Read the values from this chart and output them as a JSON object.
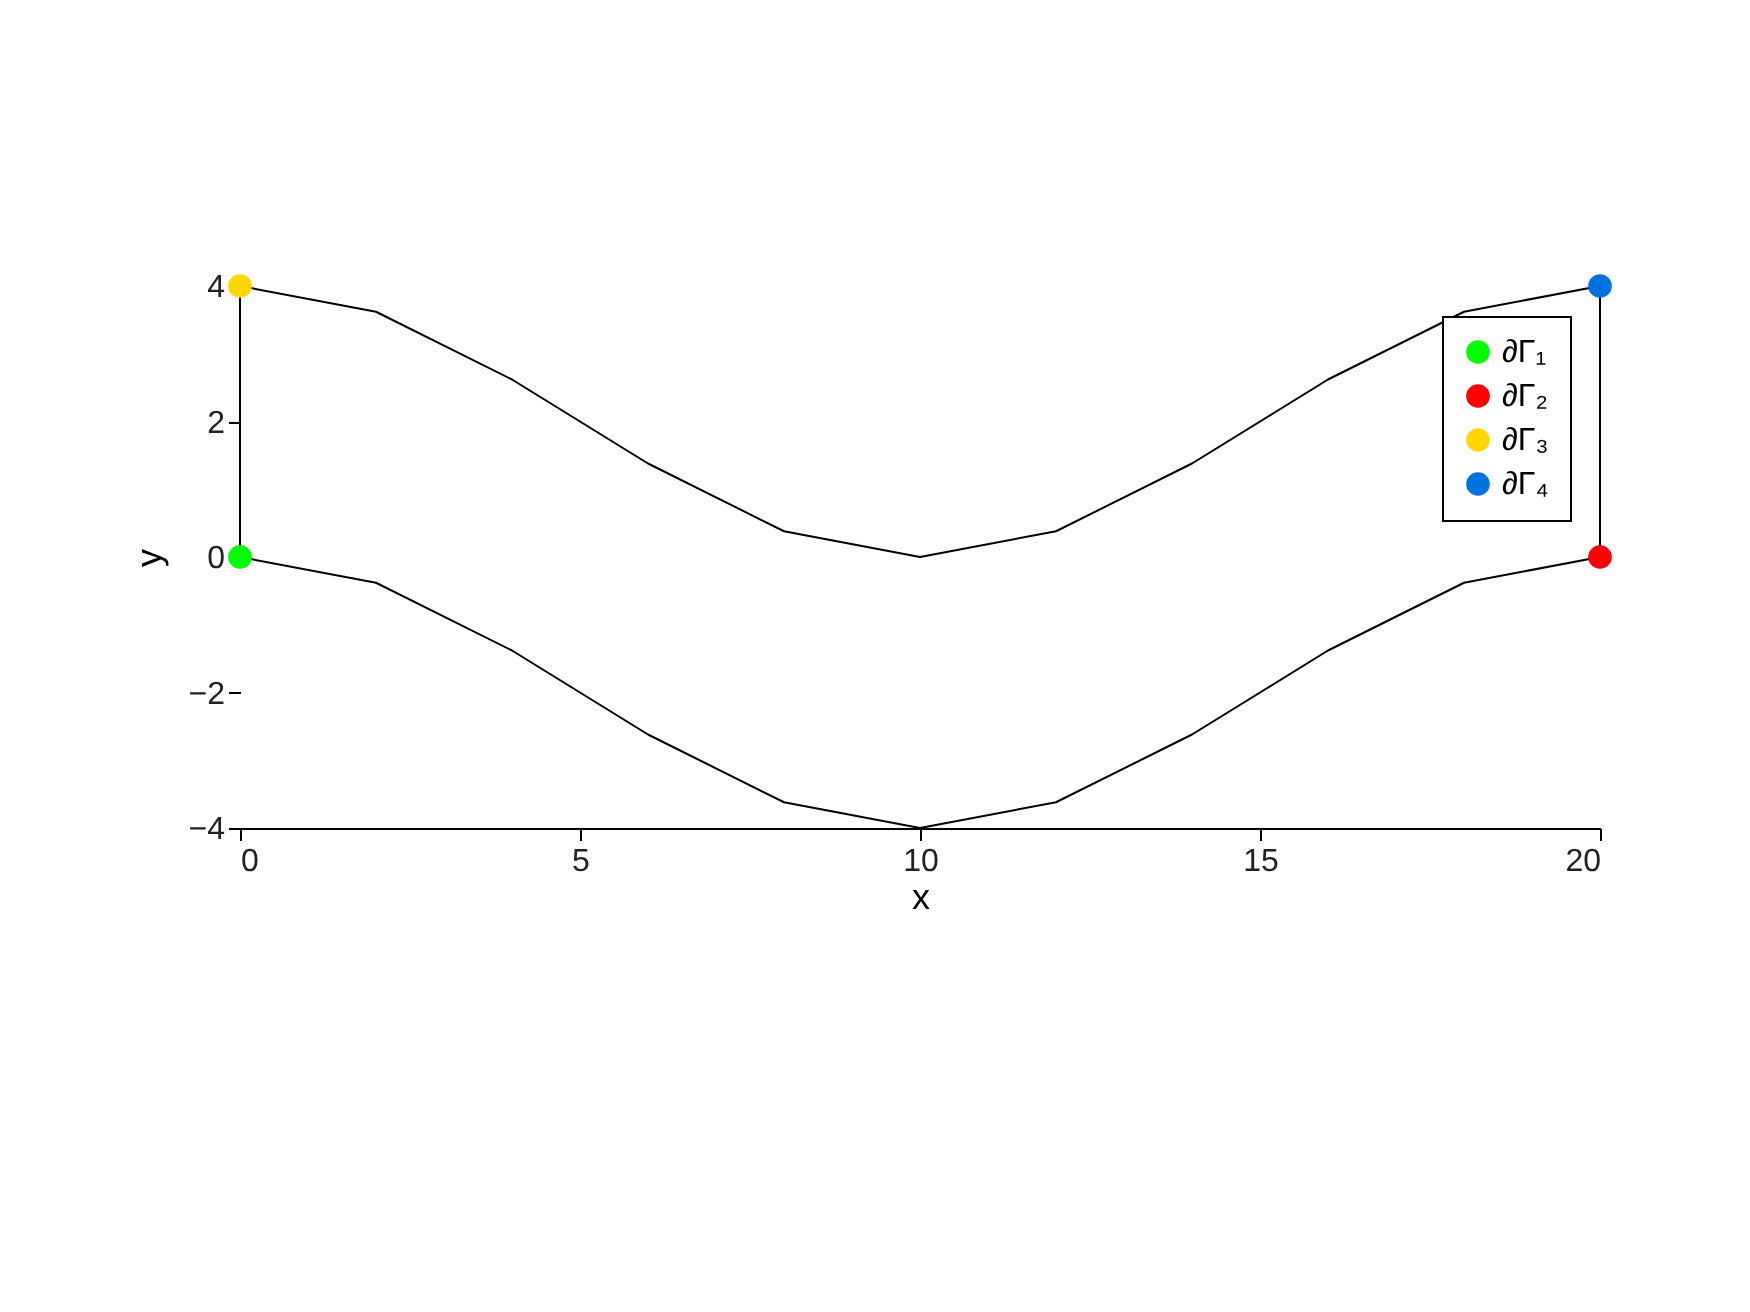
{
  "chart_data": {
    "type": "line",
    "xlabel": "x",
    "ylabel": "y",
    "xlim": [
      0,
      20
    ],
    "ylim": [
      -4,
      4
    ],
    "xticks": [
      0,
      5,
      10,
      15,
      20
    ],
    "yticks": [
      -4,
      -2,
      0,
      2,
      4
    ],
    "grid": false,
    "legend": "top right",
    "line_style": "solid",
    "series": [
      {
        "color": "#000000",
        "marker": "none",
        "x": [
          0,
          2,
          4,
          6,
          8,
          10,
          12,
          14,
          16,
          18,
          20
        ],
        "values": [
          0,
          -0.38,
          -1.38,
          -2.62,
          -3.62,
          -4,
          -3.62,
          -2.62,
          -1.38,
          -0.38,
          0
        ]
      },
      {
        "color": "#000000",
        "marker": "none",
        "x": [
          0,
          2,
          4,
          6,
          8,
          10,
          12,
          14,
          16,
          18,
          20
        ],
        "values": [
          4,
          3.62,
          2.62,
          1.38,
          0.38,
          0,
          0.38,
          1.38,
          2.62,
          3.62,
          4
        ]
      },
      {
        "color": "#000000",
        "marker": "none",
        "x": [
          0,
          0
        ],
        "values": [
          0,
          4
        ]
      },
      {
        "color": "#000000",
        "marker": "none",
        "x": [
          20,
          20
        ],
        "values": [
          0,
          4
        ]
      },
      {
        "type": "scatter",
        "marker": "circle",
        "name": "∂Γ₁",
        "color": "#00ff00",
        "x": [
          0
        ],
        "values": [
          0
        ]
      },
      {
        "type": "scatter",
        "marker": "circle",
        "name": "∂Γ₂",
        "color": "#ff0000",
        "x": [
          20
        ],
        "values": [
          0
        ]
      },
      {
        "type": "scatter",
        "marker": "circle",
        "name": "∂Γ₃",
        "color": "#ffd700",
        "x": [
          0
        ],
        "values": [
          4
        ]
      },
      {
        "type": "scatter",
        "marker": "circle",
        "name": "∂Γ₄",
        "color": "#0072e0",
        "x": [
          20
        ],
        "values": [
          4
        ]
      }
    ]
  }
}
